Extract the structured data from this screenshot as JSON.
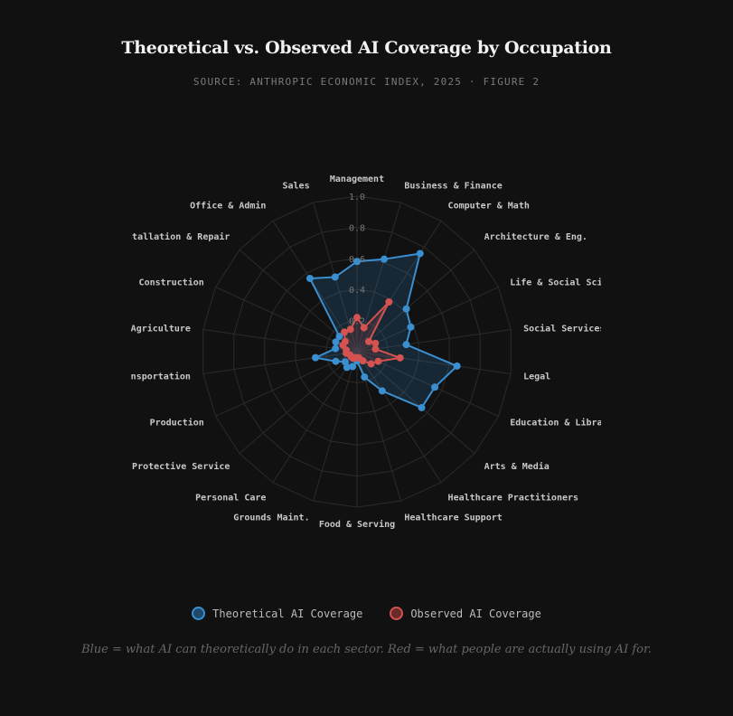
{
  "header": {
    "title": "Theoretical vs. Observed AI Coverage by Occupation",
    "subtitle": "SOURCE: ANTHROPIC ECONOMIC INDEX, 2025 · FIGURE 2"
  },
  "chart_data": {
    "type": "radar",
    "title": "Theoretical vs. Observed AI Coverage by Occupation",
    "categories": [
      "Management",
      "Business & Finance",
      "Computer & Math",
      "Architecture & Eng.",
      "Life & Social Sci",
      "Social Services",
      "Legal",
      "Education & Libra",
      "Arts & Media",
      "Healthcare Practitioners",
      "Healthcare Support",
      "Food & Serving",
      "Grounds Maint.",
      "Personal Care",
      "Protective Service",
      "Production",
      "Transportation",
      "Agriculture",
      "Construction",
      "Installation & Repair",
      "Office & Admin",
      "Sales"
    ],
    "rlim": [
      0,
      1.0
    ],
    "ticks": [
      "0.2",
      "0.4",
      "0.6",
      "0.8",
      "1.0"
    ],
    "tick_values": [
      0.2,
      0.4,
      0.6,
      0.8,
      1.0
    ],
    "grid": true,
    "legend_position": "bottom-center",
    "series": [
      {
        "name": "Theoretical AI Coverage",
        "color": "#3a8fd0",
        "values": [
          0.58,
          0.62,
          0.75,
          0.42,
          0.38,
          0.32,
          0.65,
          0.55,
          0.55,
          0.3,
          0.17,
          0.06,
          0.1,
          0.12,
          0.1,
          0.15,
          0.27,
          0.14,
          0.15,
          0.15,
          0.56,
          0.5
        ]
      },
      {
        "name": "Observed AI Coverage",
        "color": "#d4524f",
        "values": [
          0.22,
          0.16,
          0.38,
          0.1,
          0.13,
          0.12,
          0.28,
          0.15,
          0.12,
          0.07,
          0.04,
          0.04,
          0.04,
          0.05,
          0.05,
          0.05,
          0.07,
          0.07,
          0.1,
          0.1,
          0.15,
          0.15
        ]
      }
    ]
  },
  "legend": {
    "theoretical": "Theoretical AI Coverage",
    "observed": "Observed AI Coverage"
  },
  "caption": "Blue = what AI can theoretically do in each sector. Red = what people are actually using AI for."
}
